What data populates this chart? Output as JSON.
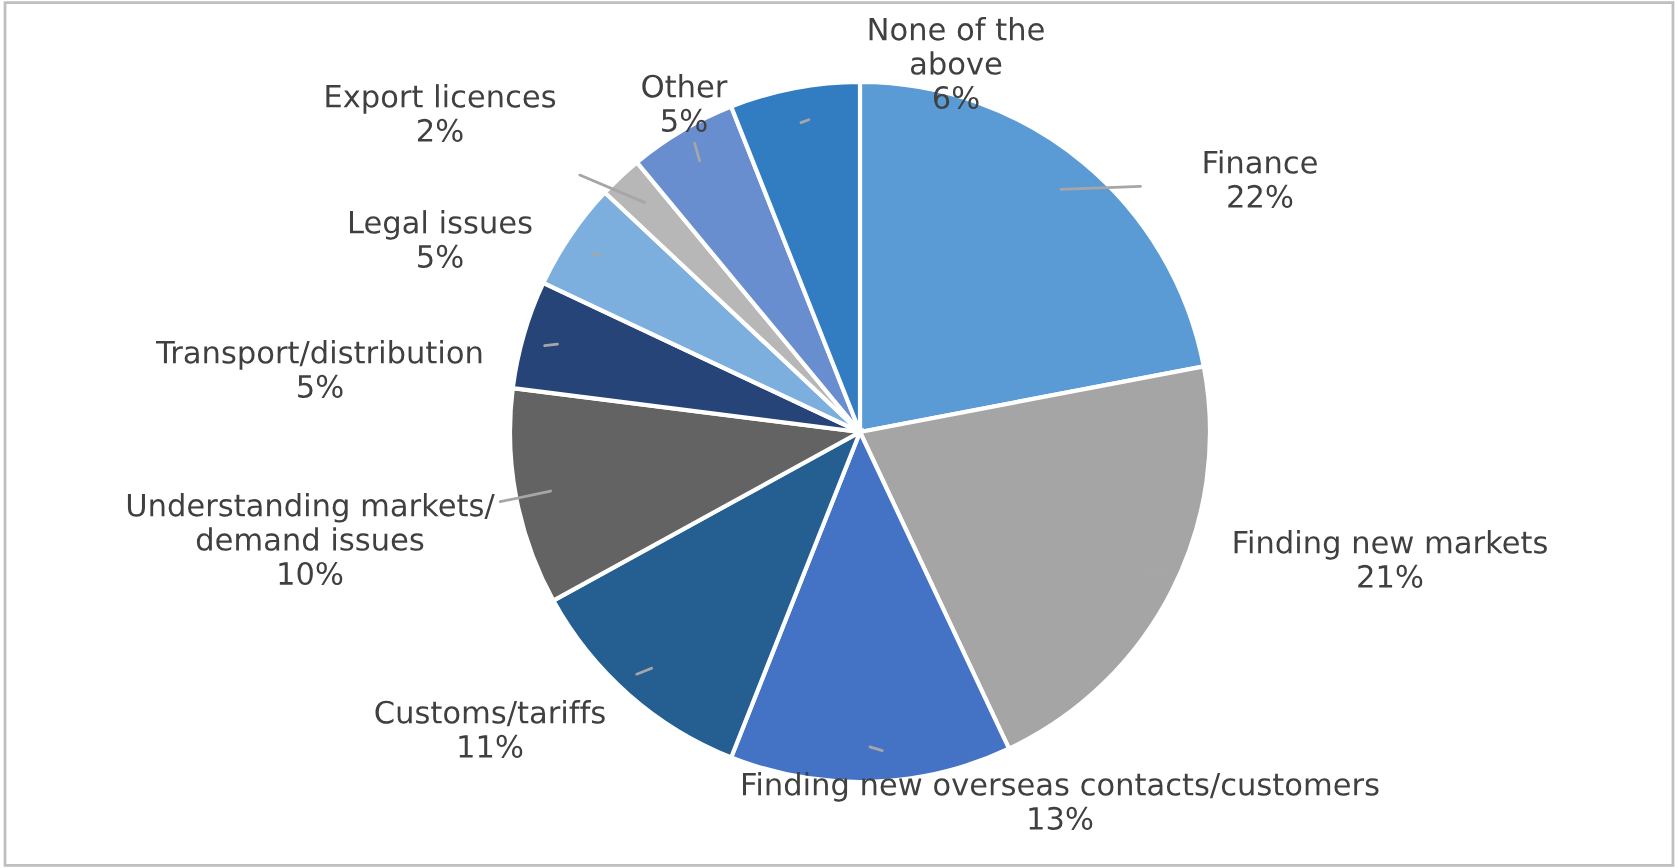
{
  "chart_data": {
    "type": "pie",
    "categories": [
      "Finance",
      "Finding new markets",
      "Finding new overseas contacts/customers",
      "Customs/tariffs",
      "Understanding markets/\ndemand issues",
      "Transport/distribution",
      "Legal issues",
      "Export licences",
      "Other",
      "None of the\nabove"
    ],
    "values": [
      22,
      21,
      13,
      11,
      10,
      5,
      5,
      2,
      5,
      6
    ],
    "colors": [
      "#5b9bd5",
      "#a5a5a5",
      "#4472c4",
      "#255e91",
      "#636363",
      "#264478",
      "#7cafdd",
      "#b7b7b7",
      "#698ed0",
      "#327dc2"
    ],
    "value_labels": [
      "22%",
      "21%",
      "13%",
      "11%",
      "10%",
      "5%",
      "5%",
      "2%",
      "5%",
      "6%"
    ]
  }
}
